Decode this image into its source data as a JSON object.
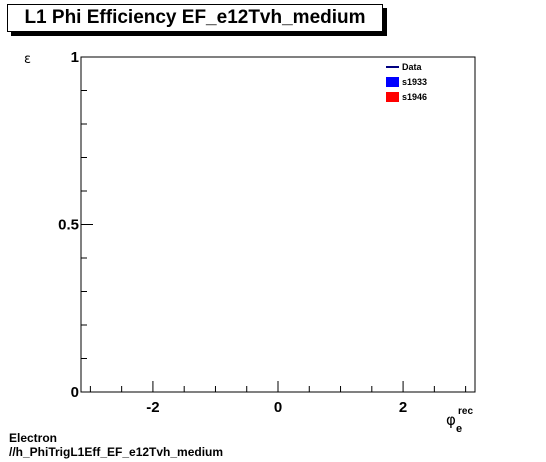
{
  "chart_data": {
    "type": "line",
    "title": "L1 Phi Efficiency EF_e12Tvh_medium",
    "ylabel": "ε",
    "xlabel": "φ",
    "xlabel_sup": "rec",
    "xlabel_sub": "e",
    "xlim": [
      -3.15,
      3.15
    ],
    "ylim": [
      0,
      1
    ],
    "x_ticks": [
      -2,
      0,
      2
    ],
    "y_ticks": [
      0,
      0.5,
      1
    ],
    "x_tick_labels": [
      "-2",
      "0",
      "2"
    ],
    "y_tick_labels": [
      "0",
      "0.5",
      "1"
    ],
    "grid": false,
    "legend_position": "top-right",
    "series": [
      {
        "name": "Data",
        "color": "#000080",
        "style": "line",
        "x": [],
        "y": []
      },
      {
        "name": "s1933",
        "color": "#0000ff",
        "style": "fill",
        "x": [],
        "y": []
      },
      {
        "name": "s1946",
        "color": "#ff0000",
        "style": "fill",
        "x": [],
        "y": []
      }
    ]
  },
  "footer": {
    "line1": "Electron",
    "line2": "//h_PhiTrigL1Eff_EF_e12Tvh_medium"
  }
}
